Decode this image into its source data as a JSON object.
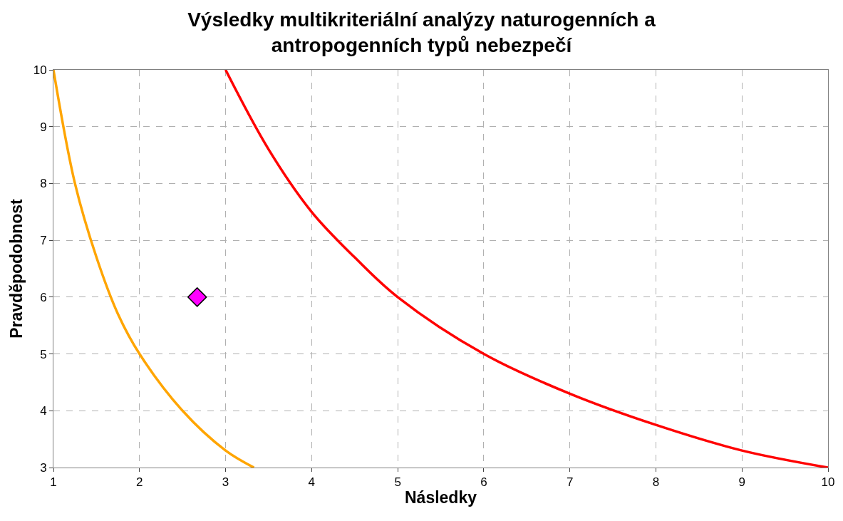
{
  "chart_data": {
    "type": "line",
    "title": "Výsledky multikriteriální analýzy naturogenních a\nantropogenních typů nebezpečí",
    "xlabel": "Následky",
    "ylabel": "Pravděpodobnost",
    "xlim": [
      1,
      10
    ],
    "ylim": [
      3,
      10
    ],
    "xticks": [
      1,
      2,
      3,
      4,
      5,
      6,
      7,
      8,
      9,
      10
    ],
    "yticks": [
      3,
      4,
      5,
      6,
      7,
      8,
      9,
      10
    ],
    "grid": true,
    "legend": false,
    "series": [
      {
        "color": "#ffa500",
        "x": [
          1,
          1.25,
          1.5,
          1.75,
          2,
          2.5,
          3,
          3.33
        ],
        "values": [
          10,
          8,
          6.7,
          5.7,
          5,
          4,
          3.3,
          3
        ]
      },
      {
        "color": "#ff0000",
        "x": [
          3,
          3.5,
          4,
          4.5,
          5,
          6,
          7,
          8,
          9,
          10
        ],
        "values": [
          10,
          8.6,
          7.5,
          6.7,
          6,
          5,
          4.3,
          3.75,
          3.3,
          3
        ]
      },
      {
        "type": "scatter",
        "color": "#ff00ff",
        "marker": "diamond",
        "x": [
          2.67
        ],
        "values": [
          6
        ]
      }
    ]
  }
}
